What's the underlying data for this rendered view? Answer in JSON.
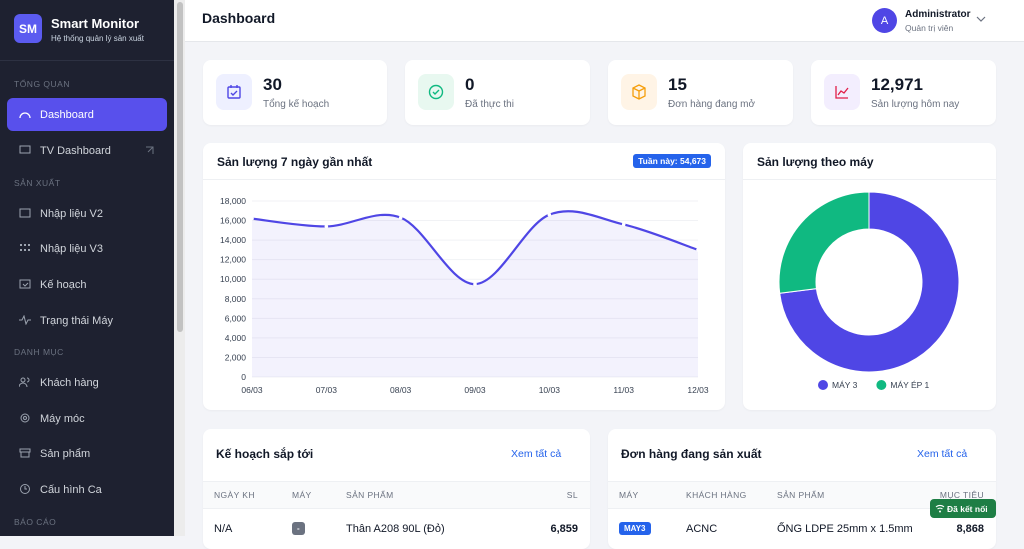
{
  "sidebar": {
    "logo": "SM",
    "title": "Smart Monitor",
    "subtitle": "Hệ thống quản lý sản xuất",
    "sections": [
      {
        "label": "TỔNG QUAN",
        "items": [
          "Dashboard",
          "TV Dashboard"
        ]
      },
      {
        "label": "SẢN XUẤT",
        "items": [
          "Nhập liệu V2",
          "Nhập liệu V3",
          "Kế hoạch",
          "Trạng thái Máy"
        ]
      },
      {
        "label": "DANH MỤC",
        "items": [
          "Khách hàng",
          "Máy móc",
          "Sản phẩm",
          "Cấu hình Ca"
        ]
      },
      {
        "label": "BÁO CÁO",
        "items": []
      }
    ]
  },
  "header": {
    "title": "Dashboard",
    "avatar": "A",
    "user_name": "Administrator",
    "user_role": "Quản trị viên"
  },
  "stats": [
    {
      "value": "30",
      "label": "Tổng kế hoạch"
    },
    {
      "value": "0",
      "label": "Đã thực thi"
    },
    {
      "value": "15",
      "label": "Đơn hàng đang mở"
    },
    {
      "value": "12,971",
      "label": "Sản lượng hôm nay"
    }
  ],
  "chart_data": [
    {
      "type": "line",
      "title": "Sản lượng 7 ngày gần nhất",
      "badge": "Tuần này: 54,673",
      "categories": [
        "06/03",
        "07/03",
        "08/03",
        "09/03",
        "10/03",
        "11/03",
        "12/03"
      ],
      "values": [
        16200,
        15400,
        16300,
        9500,
        16600,
        15600,
        13000
      ],
      "color": "#4f46e5",
      "ylim": [
        0,
        18000
      ],
      "yticks": [
        0,
        {
          "value": 2000,
          "label": "2,000"
        },
        {
          "value": 4000,
          "label": "4,000"
        },
        {
          "value": 6000,
          "label": "6,000"
        },
        {
          "value": 8000,
          "label": "8,000"
        },
        {
          "value": 10000,
          "label": "10,000"
        },
        {
          "value": 12000,
          "label": "12,000"
        },
        {
          "value": 14000,
          "label": "14,000"
        },
        {
          "value": 16000,
          "label": "16,000"
        },
        {
          "value": 18000,
          "label": "18,000"
        }
      ]
    },
    {
      "type": "pie",
      "title": "Sản lượng theo máy",
      "categories": [
        "MÁY 3",
        "MÁY ÉP 1"
      ],
      "values": [
        73,
        27
      ],
      "colors": [
        "#4f46e5",
        "#10b981"
      ]
    }
  ],
  "tables": [
    {
      "title": "Kế hoạch sắp tới",
      "link": "Xem tất cả",
      "columns": [
        "NGÀY KH",
        "MÁY",
        "SẢN PHẨM",
        "SL"
      ],
      "rows": [
        [
          "N/A",
          "-",
          "Thân A208 90L (Đỏ)",
          "6,859"
        ]
      ]
    },
    {
      "title": "Đơn hàng đang sản xuất",
      "link": "Xem tất cả",
      "columns": [
        "MÁY",
        "KHÁCH HÀNG",
        "SẢN PHẨM",
        "MỤC TIÊU"
      ],
      "rows": [
        [
          "MAY3",
          "ACNC",
          "ỐNG LDPE 25mm x 1.5mm",
          "8,868"
        ]
      ]
    }
  ],
  "toast": "Đã kết nối"
}
